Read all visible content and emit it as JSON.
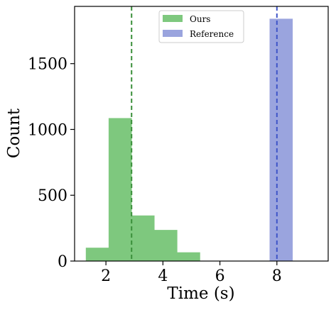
{
  "chart_data": {
    "type": "bar",
    "xlabel": "Time (s)",
    "ylabel": "Count",
    "xlim": [
      0.9,
      9.8
    ],
    "ylim": [
      0,
      1935
    ],
    "xticks": [
      2,
      4,
      6,
      8
    ],
    "yticks": [
      0,
      500,
      1000,
      1500
    ],
    "grid": false,
    "legend_position": "top-center",
    "series": [
      {
        "name": "Ours",
        "color": "#7ec87e",
        "bins": [
          {
            "x0": 1.3,
            "x1": 2.1,
            "count": 100
          },
          {
            "x0": 2.1,
            "x1": 2.9,
            "count": 1085
          },
          {
            "x0": 2.9,
            "x1": 3.7,
            "count": 345
          },
          {
            "x0": 3.7,
            "x1": 4.5,
            "count": 235
          },
          {
            "x0": 4.5,
            "x1": 5.3,
            "count": 65
          }
        ],
        "mean_line": {
          "x": 2.9,
          "color": "#3a8f3a",
          "style": "dashed"
        }
      },
      {
        "name": "Reference",
        "color": "#9aa4de",
        "bins": [
          {
            "x0": 7.75,
            "x1": 8.55,
            "count": 1840
          }
        ],
        "mean_line": {
          "x": 8.0,
          "color": "#3f55c8",
          "style": "dashed"
        }
      }
    ]
  }
}
